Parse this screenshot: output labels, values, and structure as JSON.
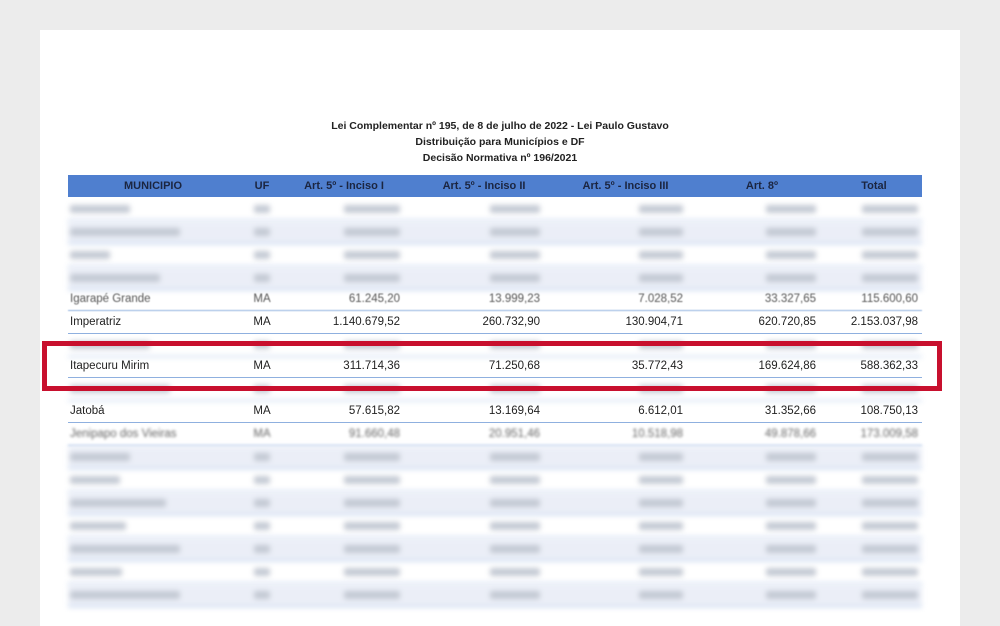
{
  "document": {
    "title_line1": "Lei Complementar nº 195, de 8 de julho de 2022 - Lei Paulo Gustavo",
    "title_line2": "Distribuição para Municípios e DF",
    "title_line3": "Decisão Normativa nº 196/2021"
  },
  "table": {
    "headers": {
      "municipio": "MUNICIPIO",
      "uf": "UF",
      "art5_i": "Art. 5º - Inciso I",
      "art5_ii": "Art. 5º - Inciso II",
      "art5_iii": "Art. 5º - Inciso III",
      "art8": "Art. 8º",
      "total": "Total"
    },
    "rows": [
      {
        "municipio": "Igarapé Grande",
        "uf": "MA",
        "art5_i": "61.245,20",
        "art5_ii": "13.999,23",
        "art5_iii": "7.028,52",
        "art8": "33.327,65",
        "total": "115.600,60"
      },
      {
        "municipio": "Imperatriz",
        "uf": "MA",
        "art5_i": "1.140.679,52",
        "art5_ii": "260.732,90",
        "art5_iii": "130.904,71",
        "art8": "620.720,85",
        "total": "2.153.037,98"
      },
      {
        "municipio": "Itapecuru Mirim",
        "uf": "MA",
        "art5_i": "311.714,36",
        "art5_ii": "71.250,68",
        "art5_iii": "35.772,43",
        "art8": "169.624,86",
        "total": "588.362,33"
      },
      {
        "municipio": "Jatobá",
        "uf": "MA",
        "art5_i": "57.615,82",
        "art5_ii": "13.169,64",
        "art5_iii": "6.612,01",
        "art8": "31.352,66",
        "total": "108.750,13"
      },
      {
        "municipio": "Jenipapo dos Vieiras",
        "uf": "MA",
        "art5_i": "91.660,48",
        "art5_ii": "20.951,46",
        "art5_iii": "10.518,98",
        "art8": "49.878,66",
        "total": "173.009,58"
      }
    ]
  },
  "colors": {
    "header_bg": "#4f7fcf",
    "highlight_border": "#c8102e"
  }
}
